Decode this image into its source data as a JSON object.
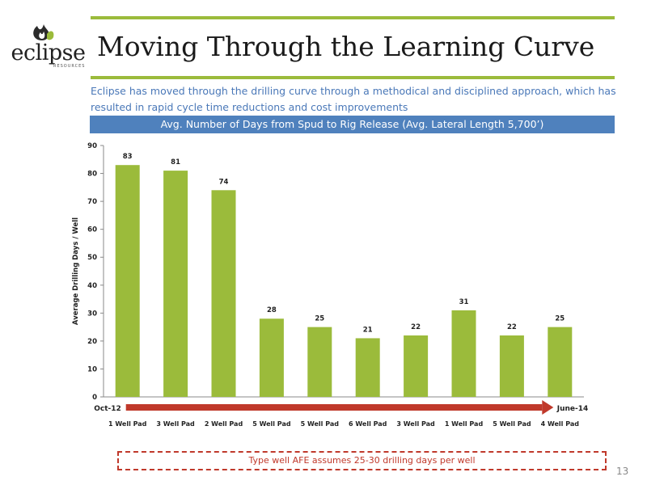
{
  "header": {
    "logo_text": "eclipse",
    "logo_subtext": "RESOURCES",
    "title": "Moving Through the Learning Curve",
    "subtitle": "Eclipse has moved through the drilling curve through a methodical and disciplined approach, which has resulted in rapid cycle time reductions and cost improvements"
  },
  "colors": {
    "accent": "#9bbb3b",
    "bar": "#9bbb3b",
    "band": "#4f81bd",
    "arrow": "#c0392b"
  },
  "chart_data": {
    "type": "bar",
    "title": "Avg. Number of Days from Spud to Rig Release (Avg. Lateral Length 5,700’)",
    "ylabel": "Average Drilling Days / Well",
    "xlabel": "",
    "ylim": [
      0,
      90
    ],
    "yticks": [
      0,
      10,
      20,
      30,
      40,
      50,
      60,
      70,
      80,
      90
    ],
    "categories": [
      "1 Well Pad",
      "3 Well Pad",
      "2 Well Pad",
      "5 Well Pad",
      "5 Well Pad",
      "6 Well Pad",
      "3 Well Pad",
      "1 Well Pad",
      "5 Well Pad",
      "4 Well Pad"
    ],
    "values": [
      83,
      81,
      74,
      28,
      25,
      21,
      22,
      31,
      22,
      25
    ],
    "data_labels": true,
    "grid": false,
    "timeline": {
      "start": "Oct-12",
      "end": "June-14"
    }
  },
  "footer": {
    "note": "Type well AFE assumes 25-30 drilling days per well",
    "page_number": "13"
  }
}
